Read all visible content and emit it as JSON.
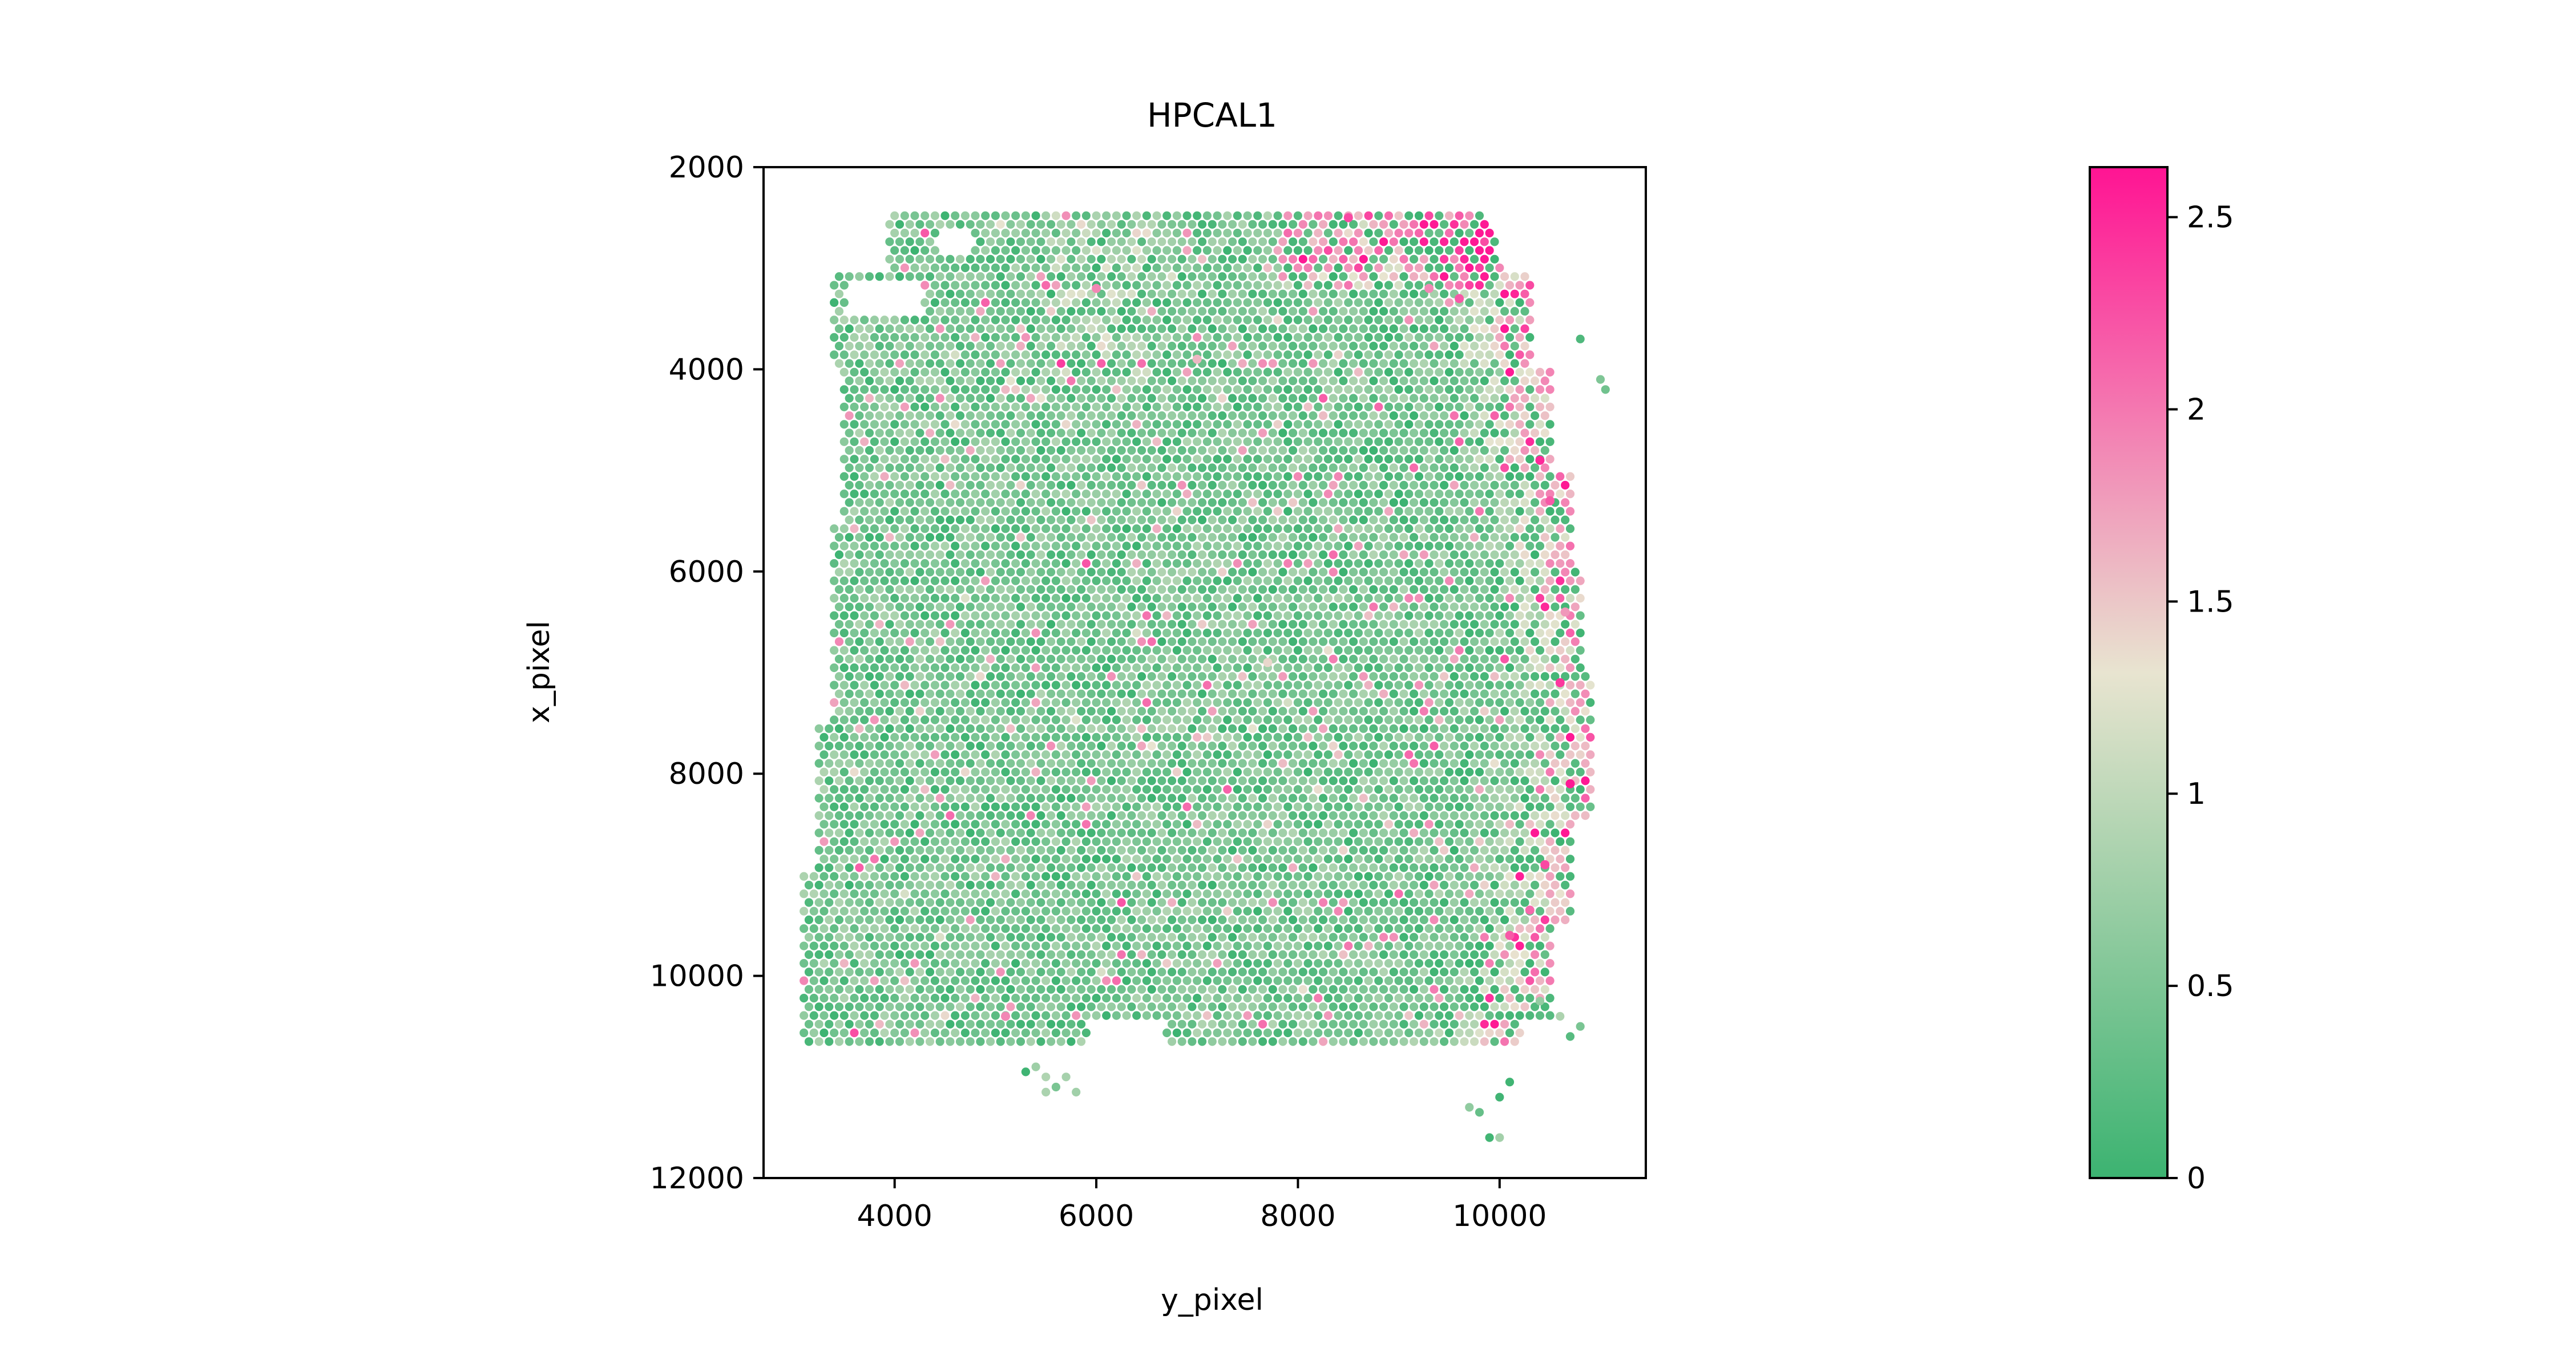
{
  "chart_data": {
    "type": "scatter",
    "title": "HPCAL1",
    "xlabel": "y_pixel",
    "ylabel": "x_pixel",
    "xlim": [
      2700,
      11450
    ],
    "ylim": [
      12000,
      2000
    ],
    "y_axis_inverted": true,
    "x_ticks": [
      "4000",
      "6000",
      "8000",
      "10000"
    ],
    "x_tick_values": [
      4000,
      6000,
      8000,
      10000
    ],
    "y_ticks": [
      "2000",
      "4000",
      "6000",
      "8000",
      "10000",
      "12000"
    ],
    "y_tick_values": [
      2000,
      4000,
      6000,
      8000,
      10000,
      12000
    ],
    "grid": false,
    "colorbar": {
      "min": 0,
      "max": 2.63,
      "ticks": [
        "0",
        "0.5",
        "1",
        "1.5",
        "2",
        "2.5"
      ],
      "tick_values": [
        0,
        0.5,
        1,
        1.5,
        2,
        2.5
      ],
      "colors": [
        "#3cb371",
        "#e8e4d0",
        "#ff1493"
      ]
    },
    "series": [
      {
        "points": [
          {
            "x": 10400,
            "y": 4900,
            "v": 2.5
          },
          {
            "x": 10500,
            "y": 5300,
            "v": 2.2
          },
          {
            "x": 10600,
            "y": 7100,
            "v": 2.4
          },
          {
            "x": 10700,
            "y": 8100,
            "v": 2.6
          },
          {
            "x": 10450,
            "y": 8900,
            "v": 2.3
          },
          {
            "x": 10100,
            "y": 9600,
            "v": 2.2
          },
          {
            "x": 10300,
            "y": 9350,
            "v": 2.1
          },
          {
            "x": 8500,
            "y": 2500,
            "v": 2.3
          },
          {
            "x": 9600,
            "y": 3300,
            "v": 2.2
          },
          {
            "x": 9300,
            "y": 3200,
            "v": 1.9
          },
          {
            "x": 6000,
            "y": 3200,
            "v": 1.9
          },
          {
            "x": 10650,
            "y": 6400,
            "v": 1.8
          },
          {
            "x": 5100,
            "y": 10400,
            "v": 1.9
          },
          {
            "x": 7000,
            "y": 3900,
            "v": 1.6
          },
          {
            "x": 7700,
            "y": 6900,
            "v": 1.4
          }
        ]
      }
    ]
  }
}
